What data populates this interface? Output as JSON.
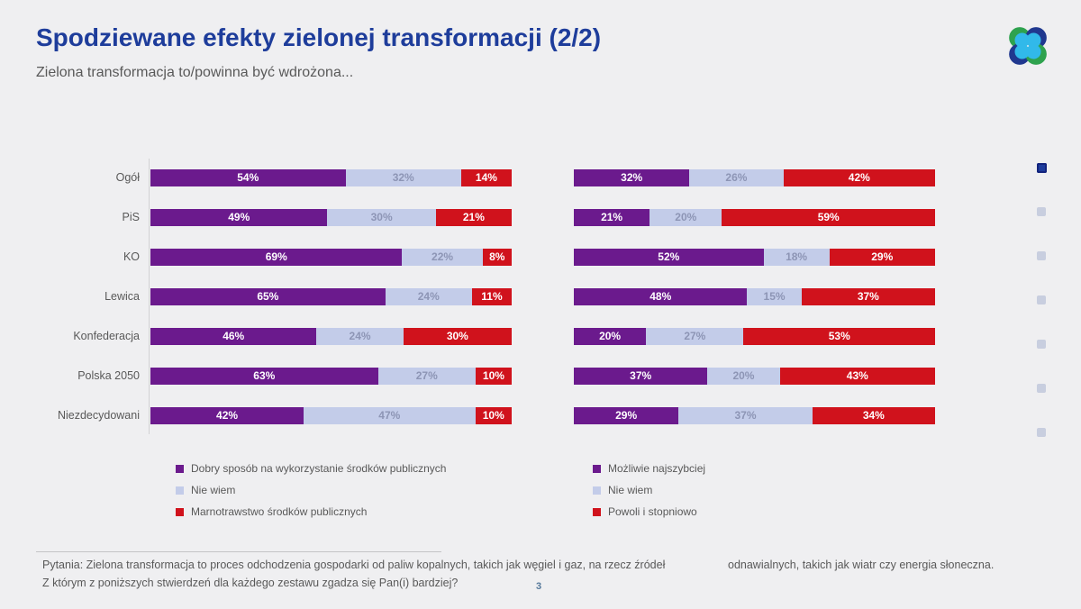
{
  "header": {
    "title": "Spodziewane efekty zielonej transformacji (2/2)",
    "subtitle": "Zielona transformacja to/powinna być wdrożona..."
  },
  "colors": {
    "title_blue": "#1e3d9b",
    "purple": "#6b1a8d",
    "lavender": "#c3cce9",
    "red": "#d0121c",
    "lavender_label_text": "#8d95b5",
    "text_gray": "#595959",
    "nav_active": "#1e3c9c",
    "nav_inactive": "#c8cedf",
    "logo_green": "#2ea24e",
    "logo_navy": "#20388f",
    "logo_cyan": "#31b9ea"
  },
  "chart_data": [
    {
      "type": "bar",
      "orientation": "horizontal",
      "stacked": true,
      "unit": "%",
      "legend_position": "bottom",
      "categories": [
        "Ogół",
        "PiS",
        "KO",
        "Lewica",
        "Konfederacja",
        "Polska 2050",
        "Niezdecydowani"
      ],
      "series": [
        {
          "name": "Dobry sposób na wykorzystanie środków publicznych",
          "color": "#6b1a8d",
          "text_color": "#ffffff",
          "values": [
            54,
            49,
            69,
            65,
            46,
            63,
            42
          ]
        },
        {
          "name": "Nie wiem",
          "color": "#c3cce9",
          "text_color": "#8d95b5",
          "values": [
            32,
            30,
            22,
            24,
            24,
            27,
            47
          ]
        },
        {
          "name": "Marnotrawstwo środków publicznych",
          "color": "#d0121c",
          "text_color": "#ffffff",
          "values": [
            14,
            21,
            8,
            11,
            30,
            10,
            10
          ]
        }
      ]
    },
    {
      "type": "bar",
      "orientation": "horizontal",
      "stacked": true,
      "unit": "%",
      "legend_position": "bottom",
      "categories": [
        "Ogół",
        "PiS",
        "KO",
        "Lewica",
        "Konfederacja",
        "Polska 2050",
        "Niezdecydowani"
      ],
      "series": [
        {
          "name": "Możliwie najszybciej",
          "color": "#6b1a8d",
          "text_color": "#ffffff",
          "values": [
            32,
            21,
            52,
            48,
            20,
            37,
            29
          ]
        },
        {
          "name": "Nie wiem",
          "color": "#c3cce9",
          "text_color": "#8d95b5",
          "values": [
            26,
            20,
            18,
            15,
            27,
            20,
            37
          ]
        },
        {
          "name": "Powoli i stopniowo",
          "color": "#d0121c",
          "text_color": "#ffffff",
          "values": [
            42,
            59,
            29,
            37,
            53,
            43,
            34
          ]
        }
      ]
    }
  ],
  "nav": {
    "count": 7,
    "active_index": 0
  },
  "footer": {
    "question_line1": "Pytania: Zielona transformacja to proces odchodzenia gospodarki od paliw kopalnych, takich jak węgiel i gaz, na rzecz źródeł",
    "question_line2": "Z którym z poniższych stwierdzeń dla każdego zestawu zgadza się Pan(i) bardziej?",
    "question_right": "odnawialnych, takich jak wiatr czy energia słoneczna.",
    "page_number": "3"
  }
}
